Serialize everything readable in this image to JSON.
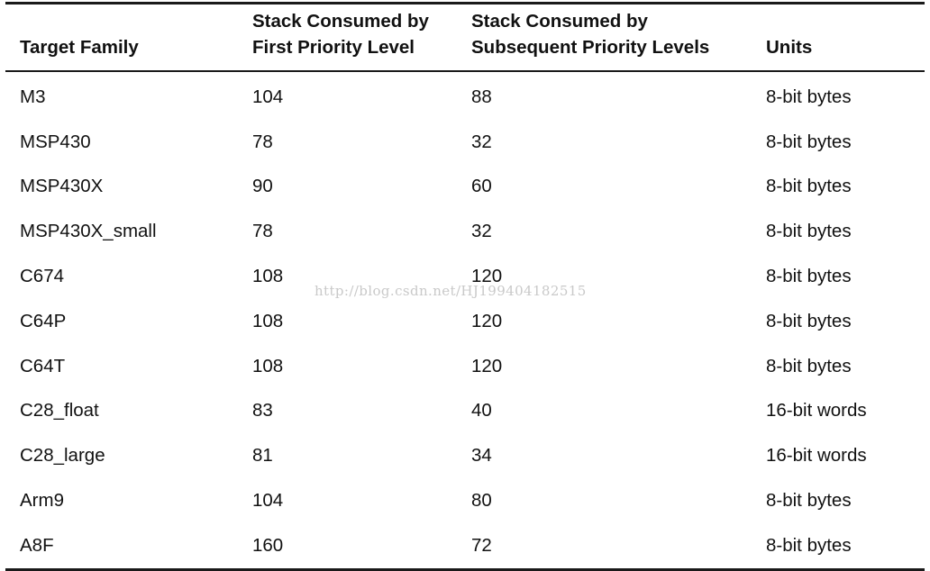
{
  "table": {
    "headers": [
      {
        "line1": "",
        "line2": "Target Family"
      },
      {
        "line1": "Stack Consumed by",
        "line2": "First Priority Level"
      },
      {
        "line1": "Stack Consumed by",
        "line2": "Subsequent Priority Levels"
      },
      {
        "line1": "",
        "line2": "Units"
      }
    ],
    "rows": [
      {
        "family": "M3",
        "first": "104",
        "subsequent": "88",
        "units": "8-bit bytes"
      },
      {
        "family": "MSP430",
        "first": "78",
        "subsequent": "32",
        "units": "8-bit bytes"
      },
      {
        "family": "MSP430X",
        "first": "90",
        "subsequent": "60",
        "units": "8-bit bytes"
      },
      {
        "family": "MSP430X_small",
        "first": "78",
        "subsequent": "32",
        "units": "8-bit bytes"
      },
      {
        "family": "C674",
        "first": "108",
        "subsequent": "120",
        "units": "8-bit bytes"
      },
      {
        "family": "C64P",
        "first": "108",
        "subsequent": "120",
        "units": "8-bit bytes"
      },
      {
        "family": "C64T",
        "first": "108",
        "subsequent": "120",
        "units": "8-bit bytes"
      },
      {
        "family": "C28_float",
        "first": "83",
        "subsequent": "40",
        "units": "16-bit words"
      },
      {
        "family": "C28_large",
        "first": "81",
        "subsequent": "34",
        "units": "16-bit words"
      },
      {
        "family": "Arm9",
        "first": "104",
        "subsequent": "80",
        "units": "8-bit bytes"
      },
      {
        "family": "A8F",
        "first": "160",
        "subsequent": "72",
        "units": "8-bit bytes"
      }
    ]
  },
  "watermark": "http://blog.csdn.net/HJ199404182515"
}
